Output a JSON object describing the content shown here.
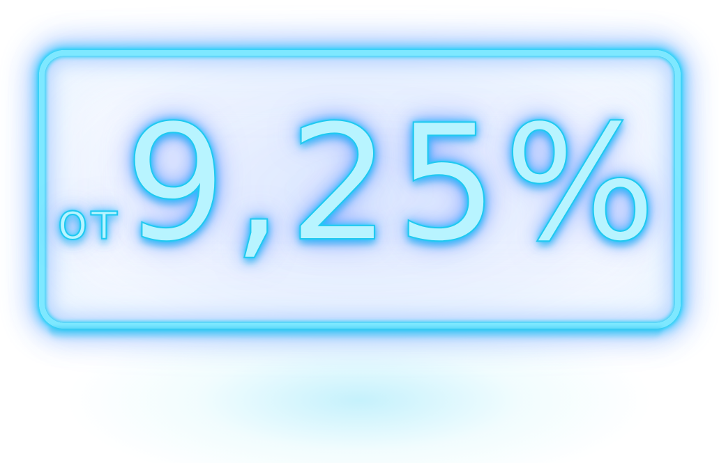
{
  "badge": {
    "prefix": "от",
    "value": "9,25%",
    "colors": {
      "neon_core": "#b8f4ff",
      "neon_stroke": "#1fc9f0",
      "glow_blue": "#5a96ff",
      "background": "#ffffff"
    }
  }
}
